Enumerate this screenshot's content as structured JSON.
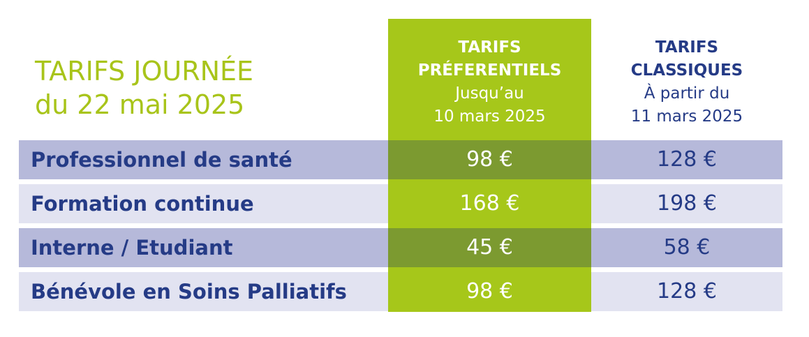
{
  "title": {
    "line1": "TARIFS JOURNÉE",
    "line2": "du 22 mai 2025"
  },
  "columns": {
    "preferential": {
      "title_line1": "TARIFS",
      "title_line2": "PRÉFERENTIELS",
      "sub_line1": "Jusqu’au",
      "sub_line2": "10 mars 2025"
    },
    "classic": {
      "title_line1": "TARIFS",
      "title_line2": "CLASSIQUES",
      "sub_line1": "À partir du",
      "sub_line2": "11 mars 2025"
    }
  },
  "rows": [
    {
      "label": "Professionnel de santé",
      "preferential": "98 €",
      "classic": "128 €"
    },
    {
      "label": "Formation continue",
      "preferential": "168 €",
      "classic": "198 €"
    },
    {
      "label": "Interne / Etudiant",
      "preferential": "45 €",
      "classic": "58 €"
    },
    {
      "label": "Bénévole en Soins Palliatifs",
      "preferential": "98 €",
      "classic": "128 €"
    }
  ],
  "colors": {
    "accent_green": "#a6c71a",
    "title_green": "#a8c41a",
    "navy": "#253b86",
    "row_dark": "#b6b9da",
    "row_light": "#e2e3f1",
    "green_shade": "#7c9a30"
  }
}
